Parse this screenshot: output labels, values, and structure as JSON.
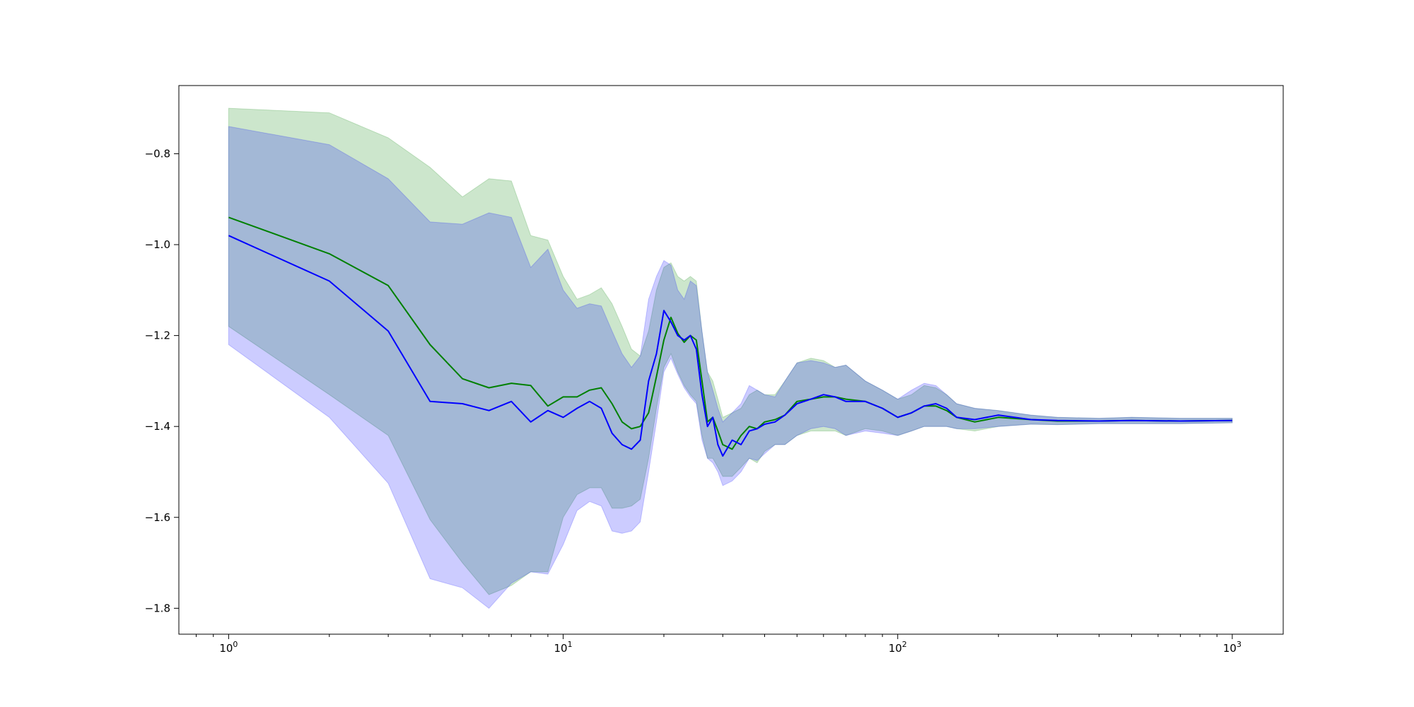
{
  "chart_data": {
    "type": "area",
    "title": "",
    "xlabel": "",
    "ylabel": "",
    "xscale": "log",
    "xlim": [
      0.71,
      1420
    ],
    "ylim": [
      -1.857,
      -0.65
    ],
    "grid": false,
    "x_ticks": [
      {
        "value": 1,
        "base": "10",
        "exp": "0"
      },
      {
        "value": 10,
        "base": "10",
        "exp": "1"
      },
      {
        "value": 100,
        "base": "10",
        "exp": "2"
      },
      {
        "value": 1000,
        "base": "10",
        "exp": "3"
      }
    ],
    "y_ticks": [
      {
        "value": -0.8,
        "label": "−0.8"
      },
      {
        "value": -1.0,
        "label": "−1.0"
      },
      {
        "value": -1.2,
        "label": "−1.2"
      },
      {
        "value": -1.4,
        "label": "−1.4"
      },
      {
        "value": -1.6,
        "label": "−1.6"
      },
      {
        "value": -1.8,
        "label": "−1.8"
      }
    ],
    "series": [
      {
        "color": "#008000",
        "band_color": "#008000",
        "band_opacity": 0.2,
        "x": [
          1,
          2,
          3,
          4,
          5,
          6,
          7,
          8,
          9,
          10,
          11,
          12,
          13,
          14,
          15,
          16,
          17,
          18,
          19,
          20,
          21,
          22,
          23,
          24,
          25,
          26,
          27,
          28,
          29,
          30,
          32,
          34,
          36,
          38,
          40,
          43,
          46,
          50,
          55,
          60,
          65,
          70,
          80,
          90,
          100,
          110,
          120,
          130,
          140,
          150,
          170,
          200,
          250,
          300,
          400,
          500,
          700,
          1000
        ],
        "mean": [
          -0.94,
          -1.02,
          -1.09,
          -1.22,
          -1.295,
          -1.315,
          -1.305,
          -1.31,
          -1.355,
          -1.335,
          -1.335,
          -1.32,
          -1.315,
          -1.35,
          -1.39,
          -1.405,
          -1.4,
          -1.37,
          -1.29,
          -1.21,
          -1.16,
          -1.195,
          -1.215,
          -1.2,
          -1.21,
          -1.3,
          -1.39,
          -1.38,
          -1.41,
          -1.44,
          -1.45,
          -1.42,
          -1.4,
          -1.405,
          -1.39,
          -1.385,
          -1.375,
          -1.345,
          -1.34,
          -1.335,
          -1.335,
          -1.34,
          -1.345,
          -1.36,
          -1.38,
          -1.37,
          -1.355,
          -1.355,
          -1.365,
          -1.38,
          -1.39,
          -1.38,
          -1.385,
          -1.388,
          -1.388,
          -1.387,
          -1.388,
          -1.387
        ],
        "upper": [
          -0.7,
          -0.71,
          -0.765,
          -0.83,
          -0.895,
          -0.855,
          -0.86,
          -0.98,
          -0.99,
          -1.07,
          -1.12,
          -1.11,
          -1.095,
          -1.13,
          -1.18,
          -1.23,
          -1.245,
          -1.19,
          -1.1,
          -1.05,
          -1.04,
          -1.07,
          -1.08,
          -1.07,
          -1.08,
          -1.19,
          -1.28,
          -1.3,
          -1.34,
          -1.38,
          -1.37,
          -1.36,
          -1.33,
          -1.32,
          -1.33,
          -1.33,
          -1.3,
          -1.26,
          -1.25,
          -1.255,
          -1.27,
          -1.265,
          -1.3,
          -1.32,
          -1.34,
          -1.33,
          -1.31,
          -1.315,
          -1.33,
          -1.35,
          -1.36,
          -1.365,
          -1.375,
          -1.38,
          -1.382,
          -1.38,
          -1.382,
          -1.382
        ],
        "lower": [
          -1.18,
          -1.33,
          -1.42,
          -1.605,
          -1.7,
          -1.77,
          -1.75,
          -1.72,
          -1.72,
          -1.6,
          -1.55,
          -1.535,
          -1.535,
          -1.58,
          -1.58,
          -1.575,
          -1.56,
          -1.47,
          -1.36,
          -1.27,
          -1.24,
          -1.28,
          -1.31,
          -1.33,
          -1.345,
          -1.42,
          -1.47,
          -1.47,
          -1.49,
          -1.51,
          -1.51,
          -1.49,
          -1.47,
          -1.48,
          -1.455,
          -1.44,
          -1.44,
          -1.42,
          -1.41,
          -1.41,
          -1.41,
          -1.42,
          -1.405,
          -1.41,
          -1.42,
          -1.41,
          -1.4,
          -1.4,
          -1.4,
          -1.405,
          -1.41,
          -1.4,
          -1.395,
          -1.396,
          -1.394,
          -1.394,
          -1.394,
          -1.392
        ]
      },
      {
        "color": "#0000ff",
        "band_color": "#0000ff",
        "band_opacity": 0.2,
        "x": [
          1,
          2,
          3,
          4,
          5,
          6,
          7,
          8,
          9,
          10,
          11,
          12,
          13,
          14,
          15,
          16,
          17,
          18,
          19,
          20,
          21,
          22,
          23,
          24,
          25,
          26,
          27,
          28,
          29,
          30,
          32,
          34,
          36,
          38,
          40,
          43,
          46,
          50,
          55,
          60,
          65,
          70,
          80,
          90,
          100,
          110,
          120,
          130,
          140,
          150,
          170,
          200,
          250,
          300,
          400,
          500,
          700,
          1000
        ],
        "mean": [
          -0.98,
          -1.08,
          -1.19,
          -1.345,
          -1.35,
          -1.365,
          -1.345,
          -1.39,
          -1.365,
          -1.38,
          -1.36,
          -1.345,
          -1.36,
          -1.415,
          -1.44,
          -1.45,
          -1.43,
          -1.3,
          -1.24,
          -1.145,
          -1.17,
          -1.2,
          -1.21,
          -1.2,
          -1.23,
          -1.33,
          -1.4,
          -1.38,
          -1.44,
          -1.465,
          -1.43,
          -1.44,
          -1.41,
          -1.405,
          -1.395,
          -1.39,
          -1.375,
          -1.35,
          -1.34,
          -1.33,
          -1.335,
          -1.345,
          -1.345,
          -1.36,
          -1.38,
          -1.37,
          -1.355,
          -1.35,
          -1.36,
          -1.38,
          -1.385,
          -1.375,
          -1.385,
          -1.387,
          -1.388,
          -1.387,
          -1.388,
          -1.387
        ],
        "upper": [
          -0.74,
          -0.78,
          -0.855,
          -0.95,
          -0.955,
          -0.93,
          -0.94,
          -1.05,
          -1.01,
          -1.1,
          -1.14,
          -1.13,
          -1.135,
          -1.19,
          -1.24,
          -1.27,
          -1.245,
          -1.12,
          -1.07,
          -1.035,
          -1.045,
          -1.1,
          -1.12,
          -1.08,
          -1.09,
          -1.19,
          -1.28,
          -1.32,
          -1.36,
          -1.39,
          -1.37,
          -1.35,
          -1.31,
          -1.32,
          -1.33,
          -1.335,
          -1.3,
          -1.26,
          -1.255,
          -1.26,
          -1.27,
          -1.265,
          -1.3,
          -1.32,
          -1.34,
          -1.32,
          -1.305,
          -1.31,
          -1.33,
          -1.35,
          -1.36,
          -1.365,
          -1.375,
          -1.38,
          -1.382,
          -1.38,
          -1.382,
          -1.382
        ],
        "lower": [
          -1.22,
          -1.38,
          -1.525,
          -1.735,
          -1.755,
          -1.8,
          -1.745,
          -1.72,
          -1.725,
          -1.66,
          -1.585,
          -1.565,
          -1.575,
          -1.63,
          -1.635,
          -1.63,
          -1.61,
          -1.5,
          -1.39,
          -1.28,
          -1.25,
          -1.285,
          -1.315,
          -1.335,
          -1.35,
          -1.43,
          -1.47,
          -1.48,
          -1.5,
          -1.53,
          -1.52,
          -1.5,
          -1.47,
          -1.475,
          -1.46,
          -1.44,
          -1.44,
          -1.42,
          -1.405,
          -1.4,
          -1.405,
          -1.42,
          -1.41,
          -1.415,
          -1.42,
          -1.41,
          -1.4,
          -1.4,
          -1.4,
          -1.405,
          -1.405,
          -1.4,
          -1.395,
          -1.396,
          -1.394,
          -1.394,
          -1.394,
          -1.392
        ]
      }
    ]
  }
}
